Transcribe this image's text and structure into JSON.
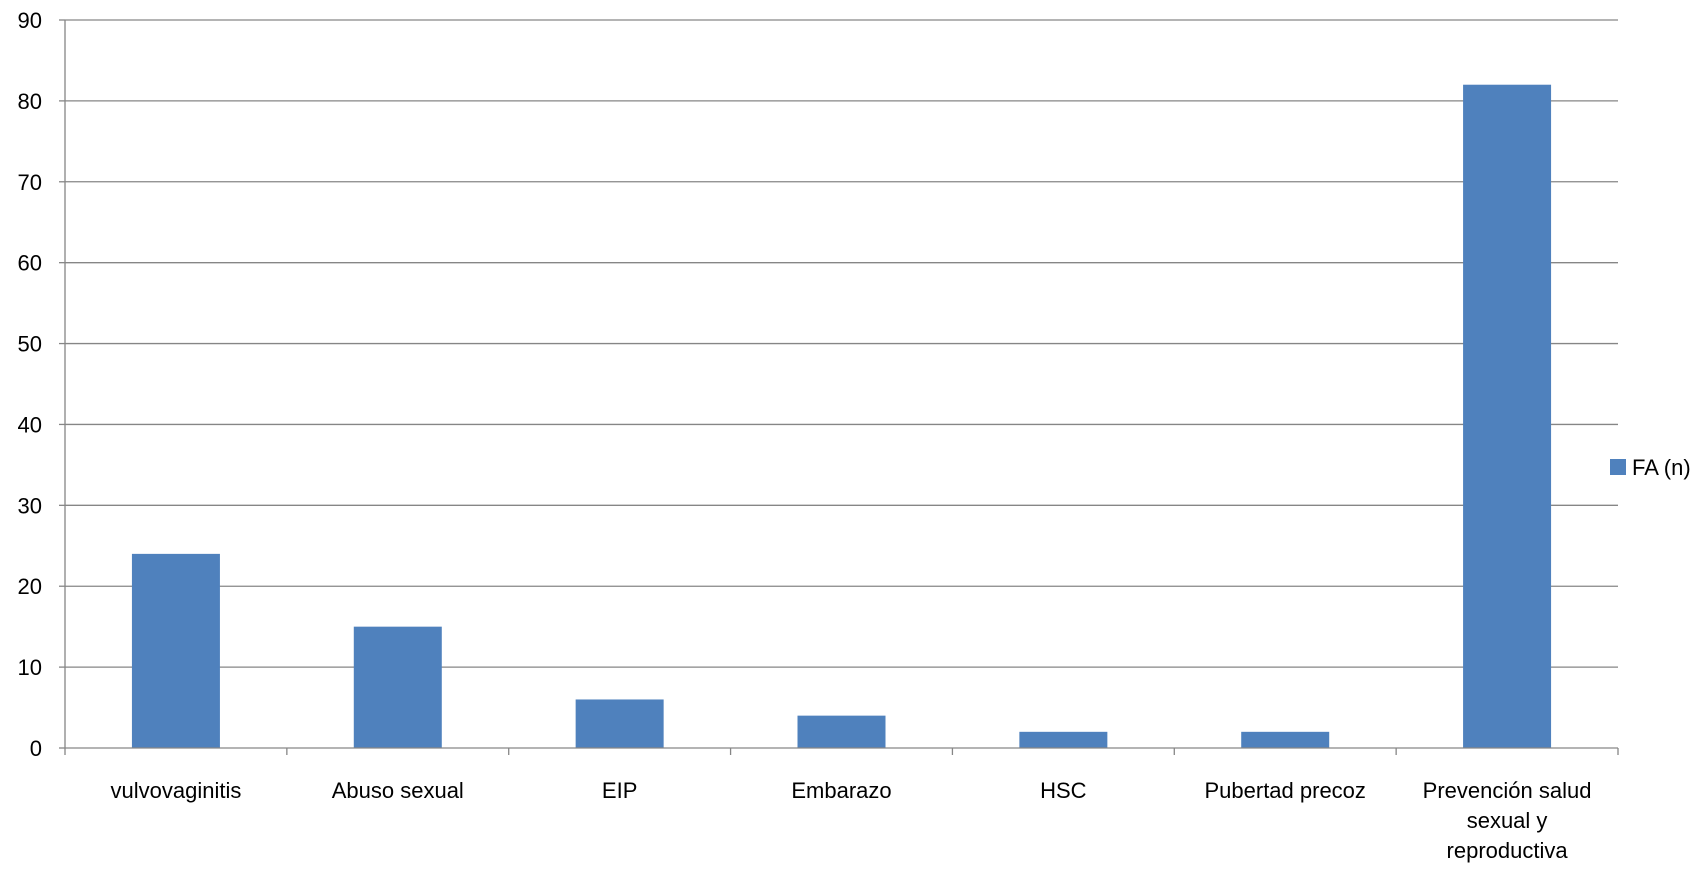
{
  "chart_data": {
    "type": "bar",
    "categories": [
      [
        "vulvovaginitis"
      ],
      [
        "Abuso sexual"
      ],
      [
        "EIP"
      ],
      [
        "Embarazo"
      ],
      [
        "HSC"
      ],
      [
        "Pubertad precoz"
      ],
      [
        "Prevención salud",
        "sexual y",
        "reproductiva"
      ]
    ],
    "series": [
      {
        "name": "FA (n)",
        "values": [
          24,
          15,
          6,
          4,
          2,
          2,
          82
        ],
        "color": "#4F81BD"
      }
    ],
    "y_ticks": [
      "0",
      "10",
      "20",
      "30",
      "40",
      "50",
      "60",
      "70",
      "80",
      "90"
    ],
    "ylim": [
      0,
      90
    ],
    "grid": true,
    "legend_position": "right"
  }
}
